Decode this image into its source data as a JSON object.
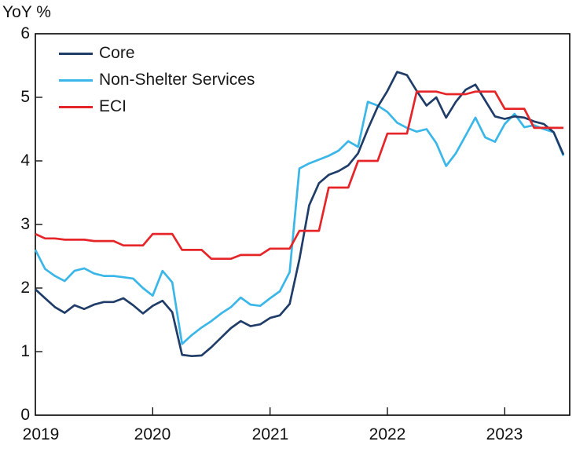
{
  "chart_data": {
    "type": "line",
    "title": "YoY %",
    "x_tick_labels": [
      "2019",
      "2020",
      "2021",
      "2022",
      "2023"
    ],
    "y_tick_labels": [
      "0",
      "1",
      "2",
      "3",
      "4",
      "5",
      "6"
    ],
    "ylim": [
      0,
      6
    ],
    "grid": false,
    "legend_position": "top-left-inside",
    "x_range_note": "monthly points Jan 2019 - Jul 2023; ECI is quarterly (value held for each quarter)",
    "series": [
      {
        "name": "Core",
        "color": "#1f3d68",
        "values": [
          1.98,
          1.84,
          1.7,
          1.61,
          1.73,
          1.67,
          1.74,
          1.78,
          1.78,
          1.84,
          1.73,
          1.6,
          1.72,
          1.8,
          1.62,
          0.95,
          0.93,
          0.94,
          1.07,
          1.22,
          1.37,
          1.48,
          1.4,
          1.43,
          1.53,
          1.57,
          1.75,
          2.45,
          3.3,
          3.65,
          3.78,
          3.84,
          3.93,
          4.12,
          4.5,
          4.85,
          5.1,
          5.4,
          5.35,
          5.1,
          4.87,
          5.0,
          4.68,
          4.93,
          5.12,
          5.2,
          4.95,
          4.7,
          4.66,
          4.7,
          4.68,
          4.62,
          4.58,
          4.45,
          4.1
        ]
      },
      {
        "name": "Non-Shelter Services",
        "color": "#3ab7e8",
        "values": [
          2.6,
          2.3,
          2.19,
          2.11,
          2.27,
          2.31,
          2.23,
          2.19,
          2.19,
          2.17,
          2.15,
          2.0,
          1.88,
          2.27,
          2.09,
          1.12,
          1.26,
          1.38,
          1.48,
          1.6,
          1.7,
          1.85,
          1.74,
          1.72,
          1.84,
          1.95,
          2.25,
          3.88,
          3.96,
          4.02,
          4.08,
          4.16,
          4.31,
          4.22,
          4.93,
          4.87,
          4.77,
          4.6,
          4.52,
          4.46,
          4.5,
          4.28,
          3.92,
          4.12,
          4.4,
          4.68,
          4.37,
          4.3,
          4.58,
          4.74,
          4.53,
          4.56,
          4.5,
          4.45,
          4.08
        ]
      },
      {
        "name": "ECI",
        "color": "#e62529",
        "values": [
          2.85,
          2.78,
          2.78,
          2.76,
          2.76,
          2.76,
          2.74,
          2.74,
          2.74,
          2.67,
          2.67,
          2.67,
          2.85,
          2.85,
          2.85,
          2.6,
          2.6,
          2.6,
          2.46,
          2.46,
          2.46,
          2.52,
          2.52,
          2.52,
          2.62,
          2.62,
          2.62,
          2.9,
          2.9,
          2.9,
          3.58,
          3.58,
          3.58,
          4.0,
          4.0,
          4.0,
          4.43,
          4.43,
          4.43,
          5.09,
          5.09,
          5.09,
          5.05,
          5.05,
          5.05,
          5.09,
          5.09,
          5.09,
          4.82,
          4.82,
          4.82,
          4.52,
          4.52,
          4.52,
          4.52
        ]
      }
    ]
  }
}
